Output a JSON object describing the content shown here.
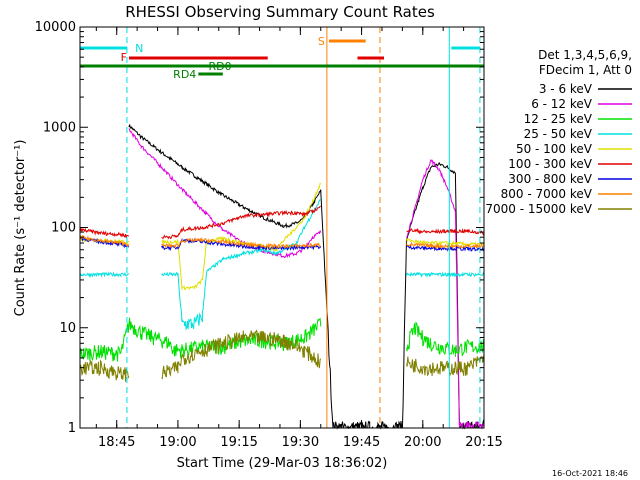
{
  "chart_data": {
    "type": "line",
    "title": "RHESSI Observing Summary Count Rates",
    "xlabel": "Start Time (29-Mar-03 18:36:02)",
    "ylabel": "Count Rate (s⁻¹ detector⁻¹)",
    "y_scale": "log",
    "ylim": [
      1,
      10000
    ],
    "xlim_minutes_after_start": [
      0,
      99
    ],
    "x_ticks": [
      "18:45",
      "19:00",
      "19:15",
      "19:30",
      "19:45",
      "20:00",
      "20:15"
    ],
    "y_ticks": [
      "1",
      "10",
      "100",
      "1000",
      "10000"
    ],
    "info_lines": [
      "Det 1,3,4,5,6,9,",
      "FDecim 1, Att 0"
    ],
    "footer_date": "16-Oct-2021 18:46",
    "flag_labels": {
      "N": "N",
      "F": "F",
      "S": "S",
      "RD0": "RD0",
      "RD4": "RD4"
    },
    "series": [
      {
        "name": "3 - 6 keV",
        "color": "#000000",
        "points": [
          [
            11,
            0
          ],
          [
            12,
            1045
          ],
          [
            15,
            800
          ],
          [
            20,
            560
          ],
          [
            25,
            400
          ],
          [
            30,
            290
          ],
          [
            35,
            210
          ],
          [
            40,
            160
          ],
          [
            45,
            125
          ],
          [
            50,
            103
          ],
          [
            53,
            110
          ],
          [
            55,
            125
          ],
          [
            57,
            170
          ],
          [
            59,
            232
          ],
          [
            62,
            1
          ],
          [
            63,
            1
          ],
          [
            64,
            1
          ],
          [
            65,
            1
          ],
          [
            66,
            1
          ],
          [
            67,
            1
          ],
          [
            68,
            1
          ],
          [
            69,
            1
          ],
          [
            70,
            1
          ],
          [
            71,
            1
          ],
          [
            72,
            1
          ],
          [
            73,
            1
          ],
          [
            74,
            1
          ],
          [
            75,
            1
          ],
          [
            76,
            1
          ],
          [
            77,
            1
          ],
          [
            78,
            1
          ],
          [
            79,
            1
          ],
          [
            80,
            75
          ],
          [
            82,
            140
          ],
          [
            84,
            250
          ],
          [
            86,
            400
          ],
          [
            88,
            430
          ],
          [
            90,
            400
          ],
          [
            92,
            350
          ],
          [
            93,
            1
          ],
          [
            94,
            1
          ],
          [
            95,
            1
          ],
          [
            96,
            1
          ],
          [
            97,
            1
          ],
          [
            98,
            1
          ],
          [
            99,
            1
          ]
        ]
      },
      {
        "name": "6 - 12 keV",
        "color": "#e000e0",
        "points": [
          [
            11,
            0
          ],
          [
            12,
            960
          ],
          [
            15,
            650
          ],
          [
            20,
            400
          ],
          [
            25,
            240
          ],
          [
            30,
            150
          ],
          [
            35,
            95
          ],
          [
            40,
            70
          ],
          [
            45,
            58
          ],
          [
            50,
            52
          ],
          [
            53,
            55
          ],
          [
            55,
            62
          ],
          [
            57,
            80
          ],
          [
            59,
            90
          ],
          [
            80,
            80
          ],
          [
            82,
            150
          ],
          [
            84,
            300
          ],
          [
            86,
            470
          ],
          [
            88,
            380
          ],
          [
            90,
            250
          ],
          [
            92,
            145
          ],
          [
            93,
            1
          ],
          [
            94,
            1
          ],
          [
            95,
            1
          ],
          [
            96,
            1
          ],
          [
            97,
            1
          ],
          [
            98,
            1
          ],
          [
            99,
            1
          ]
        ]
      },
      {
        "name": "12 - 25 keV",
        "color": "#00e000",
        "points": [
          [
            0,
            5.5
          ],
          [
            5,
            5.8
          ],
          [
            10,
            5.5
          ],
          [
            12,
            11
          ],
          [
            15,
            9
          ],
          [
            18,
            8
          ],
          [
            20,
            7.5
          ],
          [
            22,
            7
          ],
          [
            23,
            6
          ],
          [
            25,
            6
          ],
          [
            30,
            6.5
          ],
          [
            35,
            6.5
          ],
          [
            40,
            7.5
          ],
          [
            45,
            7.5
          ],
          [
            50,
            7
          ],
          [
            55,
            8
          ],
          [
            59,
            11
          ],
          [
            80,
            6.5
          ],
          [
            82,
            10
          ],
          [
            84,
            8
          ],
          [
            86,
            7
          ],
          [
            88,
            6.5
          ],
          [
            92,
            6
          ],
          [
            95,
            6.5
          ],
          [
            99,
            6.5
          ]
        ]
      },
      {
        "name": "25 - 50 keV",
        "color": "#00e0e0",
        "points": [
          [
            0,
            34
          ],
          [
            5,
            34
          ],
          [
            10,
            34
          ],
          [
            12,
            34
          ],
          [
            20,
            34
          ],
          [
            24,
            34
          ],
          [
            25,
            11
          ],
          [
            28,
            11
          ],
          [
            30,
            13
          ],
          [
            31,
            36
          ],
          [
            35,
            48
          ],
          [
            40,
            55
          ],
          [
            45,
            60
          ],
          [
            48,
            55
          ],
          [
            50,
            60
          ],
          [
            53,
            70
          ],
          [
            55,
            100
          ],
          [
            57,
            140
          ],
          [
            59,
            190
          ],
          [
            80,
            34
          ],
          [
            85,
            34
          ],
          [
            90,
            34
          ],
          [
            92,
            34
          ],
          [
            95,
            34
          ],
          [
            99,
            34
          ]
        ]
      },
      {
        "name": "50 - 100 keV",
        "color": "#e0e000",
        "points": [
          [
            0,
            75
          ],
          [
            5,
            75
          ],
          [
            10,
            72
          ],
          [
            12,
            72
          ],
          [
            20,
            72
          ],
          [
            24,
            72
          ],
          [
            25,
            25
          ],
          [
            28,
            25
          ],
          [
            30,
            30
          ],
          [
            31,
            72
          ],
          [
            35,
            78
          ],
          [
            40,
            70
          ],
          [
            45,
            65
          ],
          [
            48,
            60
          ],
          [
            50,
            75
          ],
          [
            53,
            100
          ],
          [
            55,
            125
          ],
          [
            57,
            180
          ],
          [
            59,
            280
          ],
          [
            80,
            75
          ],
          [
            85,
            70
          ],
          [
            90,
            70
          ],
          [
            95,
            68
          ],
          [
            99,
            68
          ]
        ]
      },
      {
        "name": "100 - 300 keV",
        "color": "#e00000",
        "points": [
          [
            0,
            95
          ],
          [
            5,
            88
          ],
          [
            10,
            85
          ],
          [
            12,
            82
          ],
          [
            20,
            80
          ],
          [
            24,
            82
          ],
          [
            25,
            95
          ],
          [
            30,
            100
          ],
          [
            35,
            110
          ],
          [
            40,
            130
          ],
          [
            45,
            135
          ],
          [
            50,
            140
          ],
          [
            53,
            140
          ],
          [
            55,
            135
          ],
          [
            57,
            145
          ],
          [
            59,
            160
          ],
          [
            80,
            95
          ],
          [
            85,
            90
          ],
          [
            90,
            92
          ],
          [
            95,
            92
          ],
          [
            99,
            88
          ]
        ]
      },
      {
        "name": "300 - 800 keV",
        "color": "#0000e0",
        "points": [
          [
            0,
            78
          ],
          [
            5,
            72
          ],
          [
            10,
            68
          ],
          [
            12,
            65
          ],
          [
            20,
            63
          ],
          [
            24,
            63
          ],
          [
            25,
            75
          ],
          [
            30,
            72
          ],
          [
            35,
            68
          ],
          [
            40,
            65
          ],
          [
            45,
            63
          ],
          [
            50,
            62
          ],
          [
            55,
            64
          ],
          [
            59,
            64
          ],
          [
            80,
            64
          ],
          [
            85,
            62
          ],
          [
            90,
            62
          ],
          [
            95,
            61
          ],
          [
            99,
            60
          ]
        ]
      },
      {
        "name": "800 - 7000 keV",
        "color": "#ff8000",
        "points": [
          [
            0,
            80
          ],
          [
            5,
            74
          ],
          [
            10,
            70
          ],
          [
            12,
            68
          ],
          [
            20,
            66
          ],
          [
            24,
            66
          ],
          [
            25,
            74
          ],
          [
            30,
            75
          ],
          [
            35,
            72
          ],
          [
            40,
            68
          ],
          [
            45,
            66
          ],
          [
            50,
            65
          ],
          [
            55,
            66
          ],
          [
            59,
            67
          ],
          [
            80,
            68
          ],
          [
            85,
            66
          ],
          [
            90,
            65
          ],
          [
            95,
            65
          ],
          [
            99,
            65
          ]
        ]
      },
      {
        "name": "7000 - 15000 keV",
        "color": "#808000",
        "points": [
          [
            0,
            4
          ],
          [
            5,
            4
          ],
          [
            10,
            3.5
          ],
          [
            12,
            3.5
          ],
          [
            20,
            3.5
          ],
          [
            24,
            4
          ],
          [
            25,
            5
          ],
          [
            30,
            6
          ],
          [
            35,
            7
          ],
          [
            40,
            8
          ],
          [
            45,
            8
          ],
          [
            50,
            7.5
          ],
          [
            55,
            6
          ],
          [
            59,
            4.5
          ],
          [
            80,
            4.5
          ],
          [
            85,
            4
          ],
          [
            90,
            4
          ],
          [
            95,
            4
          ],
          [
            99,
            5
          ]
        ]
      }
    ]
  }
}
